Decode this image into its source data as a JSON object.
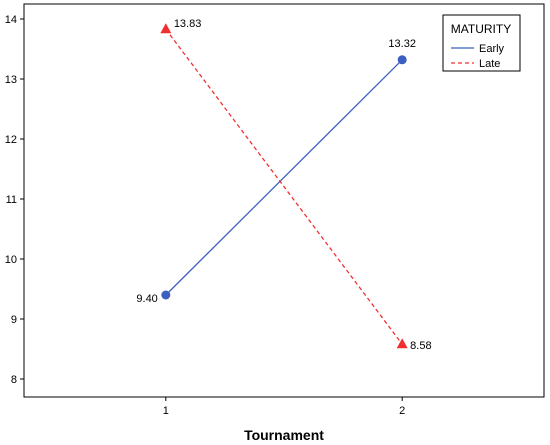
{
  "chart_data": {
    "type": "line",
    "x": [
      1,
      2
    ],
    "xticks": [
      "1",
      "2"
    ],
    "xlabel": "Tournament",
    "ylabel": "",
    "ylim": [
      7.7,
      14.25
    ],
    "xlim": [
      0.4,
      2.6
    ],
    "yticks": [
      8,
      9,
      10,
      11,
      12,
      13,
      14
    ],
    "grid": false,
    "legend": {
      "title": "MATURITY",
      "position": "top-right"
    },
    "series": [
      {
        "name": "Early",
        "values": [
          9.4,
          13.32
        ],
        "labels": [
          "9.40",
          "13.32"
        ],
        "color": "#3b5fc0",
        "dash": "solid",
        "marker": "circle"
      },
      {
        "name": "Late",
        "values": [
          13.83,
          8.58
        ],
        "labels": [
          "13.83",
          "8.58"
        ],
        "color": "#f03030",
        "dash": "dashed",
        "marker": "triangle"
      }
    ]
  }
}
